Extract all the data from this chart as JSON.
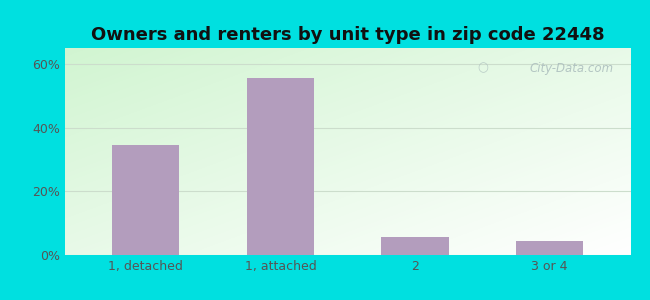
{
  "title": "Owners and renters by unit type in zip code 22448",
  "categories": [
    "1, detached",
    "1, attached",
    "2",
    "3 or 4"
  ],
  "values": [
    34.5,
    55.5,
    5.5,
    4.5
  ],
  "bar_color": "#b39dbd",
  "ylim": [
    0,
    65
  ],
  "yticks": [
    0,
    20,
    40,
    60
  ],
  "ytick_labels": [
    "0%",
    "20%",
    "40%",
    "60%"
  ],
  "background_outer": "#00e0e0",
  "title_fontsize": 13,
  "tick_fontsize": 9,
  "watermark": "City-Data.com"
}
